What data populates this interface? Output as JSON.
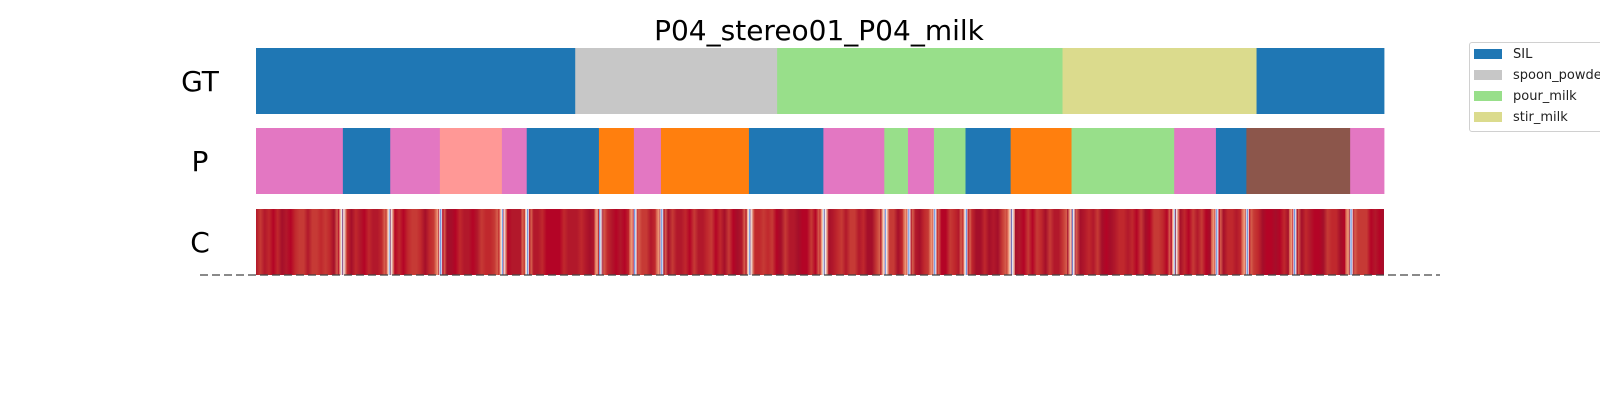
{
  "chart_data": {
    "type": "segmentation",
    "title": "P04_stereo01_P04_milk",
    "rows": [
      {
        "label": "GT",
        "segments": [
          {
            "start": 0.0,
            "end": 0.283,
            "action": "SIL",
            "color": "#1f77b4"
          },
          {
            "start": 0.283,
            "end": 0.462,
            "action": "spoon_powder",
            "color": "#c7c7c7"
          },
          {
            "start": 0.462,
            "end": 0.715,
            "action": "pour_milk",
            "color": "#98df8a"
          },
          {
            "start": 0.715,
            "end": 0.887,
            "action": "stir_milk",
            "color": "#dbdb8d"
          },
          {
            "start": 0.887,
            "end": 1.0,
            "action": "SIL",
            "color": "#1f77b4"
          }
        ]
      },
      {
        "label": "P",
        "segments": [
          {
            "start": 0.0,
            "end": 0.077,
            "color": "#e377c2"
          },
          {
            "start": 0.077,
            "end": 0.119,
            "color": "#1f77b4"
          },
          {
            "start": 0.119,
            "end": 0.163,
            "color": "#e377c2"
          },
          {
            "start": 0.163,
            "end": 0.218,
            "color": "#ff9896"
          },
          {
            "start": 0.218,
            "end": 0.24,
            "color": "#e377c2"
          },
          {
            "start": 0.24,
            "end": 0.304,
            "color": "#1f77b4"
          },
          {
            "start": 0.304,
            "end": 0.335,
            "color": "#ff7f0e"
          },
          {
            "start": 0.335,
            "end": 0.359,
            "color": "#e377c2"
          },
          {
            "start": 0.359,
            "end": 0.437,
            "color": "#ff7f0e"
          },
          {
            "start": 0.437,
            "end": 0.503,
            "color": "#1f77b4"
          },
          {
            "start": 0.503,
            "end": 0.557,
            "color": "#e377c2"
          },
          {
            "start": 0.557,
            "end": 0.578,
            "color": "#98df8a"
          },
          {
            "start": 0.578,
            "end": 0.601,
            "color": "#e377c2"
          },
          {
            "start": 0.601,
            "end": 0.629,
            "color": "#98df8a"
          },
          {
            "start": 0.629,
            "end": 0.669,
            "color": "#1f77b4"
          },
          {
            "start": 0.669,
            "end": 0.723,
            "color": "#ff7f0e"
          },
          {
            "start": 0.723,
            "end": 0.814,
            "color": "#98df8a"
          },
          {
            "start": 0.814,
            "end": 0.851,
            "color": "#e377c2"
          },
          {
            "start": 0.851,
            "end": 0.878,
            "color": "#1f77b4"
          },
          {
            "start": 0.878,
            "end": 0.97,
            "color": "#8c564b"
          },
          {
            "start": 0.97,
            "end": 1.0,
            "color": "#e377c2"
          }
        ]
      },
      {
        "label": "C",
        "type": "confidence-heatmap",
        "dips": [
          0.076,
          0.118,
          0.163,
          0.218,
          0.24,
          0.304,
          0.335,
          0.359,
          0.437,
          0.503,
          0.557,
          0.578,
          0.601,
          0.629,
          0.669,
          0.723,
          0.814,
          0.851,
          0.878,
          0.92,
          0.97
        ]
      }
    ],
    "legend": [
      {
        "label": "SIL",
        "color": "#1f77b4"
      },
      {
        "label": "spoon_powder",
        "color": "#c7c7c7"
      },
      {
        "label": "pour_milk",
        "color": "#98df8a"
      },
      {
        "label": "stir_milk",
        "color": "#dbdb8d"
      }
    ],
    "legend_position": "top-right",
    "baseline": "dashed"
  }
}
